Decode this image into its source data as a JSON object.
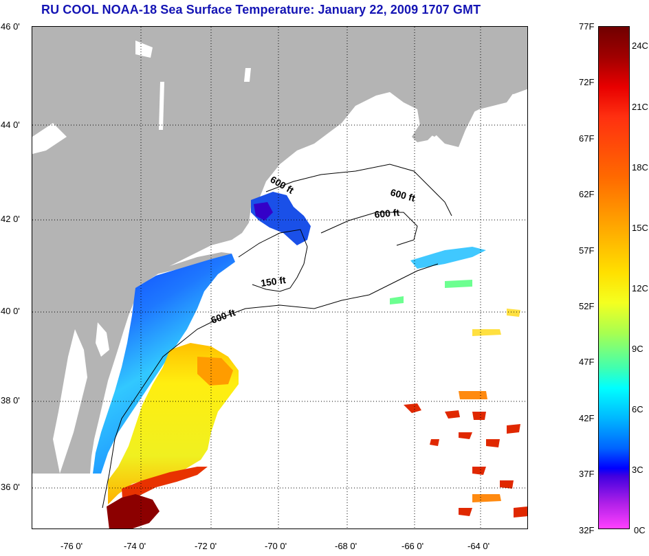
{
  "title": "RU COOL  NOAA-18  Sea Surface Temperature:  January 22, 2009 1707 GMT",
  "map": {
    "lat_ticks": [
      "46 0'",
      "44 0'",
      "42 0'",
      "40 0'",
      "38 0'",
      "36 0'"
    ],
    "lon_ticks": [
      "-76 0'",
      "-74 0'",
      "-72 0'",
      "-70 0'",
      "-68 0'",
      "-66 0'",
      "-64 0'"
    ],
    "contours": {
      "a": "600 ft",
      "b": "600 ft",
      "c": "600 ft",
      "d": "150 ft",
      "e": "600 ft"
    },
    "colors": {
      "land": "#b4b4b4",
      "ocean": "#ffffff",
      "grid": "#000000"
    }
  },
  "colorbar": {
    "fahrenheit": [
      "77F",
      "72F",
      "67F",
      "62F",
      "57F",
      "52F",
      "47F",
      "42F",
      "37F",
      "32F"
    ],
    "celsius": [
      "24C",
      "21C",
      "18C",
      "15C",
      "12C",
      "9C",
      "6C",
      "3C",
      "0C"
    ]
  }
}
